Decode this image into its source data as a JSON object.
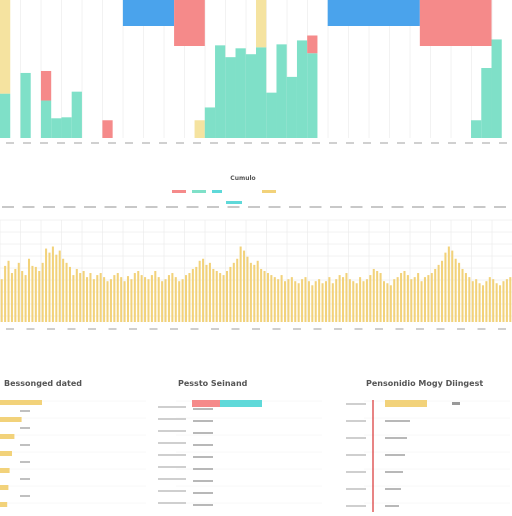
{
  "colors": {
    "red": "#f58a8a",
    "teal": "#7fe0c8",
    "cyan": "#5fd9d9",
    "yellow": "#f5e3a0",
    "blue": "#4aa3ec",
    "gold": "#f2d27a",
    "grid": "#e6e6e6"
  },
  "chart_data": [
    {
      "type": "bar",
      "note": "top stacked multi-color bar chart; labels illegible",
      "categories": [
        "c1",
        "c2",
        "c3",
        "c4",
        "c5",
        "c6",
        "c7",
        "c8",
        "c9",
        "c10",
        "c11",
        "c12",
        "c13",
        "c14",
        "c15",
        "c16",
        "c17",
        "c18",
        "c19",
        "c20",
        "c21",
        "c22",
        "c23",
        "c24",
        "c25",
        "c26",
        "c27",
        "c28",
        "c29",
        "c30",
        "c31",
        "c32",
        "c33",
        "c34",
        "c35",
        "c36",
        "c37",
        "c38",
        "c39",
        "c40",
        "c41",
        "c42",
        "c43",
        "c44",
        "c45",
        "c46",
        "c47",
        "c48",
        "c49",
        "c50"
      ],
      "series": [
        {
          "color": "teal",
          "values": [
            45,
            0,
            66,
            0,
            38,
            20,
            21,
            47,
            0,
            0,
            0,
            0,
            0,
            0,
            0,
            0,
            0,
            0,
            0,
            0,
            31,
            94,
            82,
            91,
            85,
            92,
            46,
            95,
            62,
            99,
            86,
            0,
            0,
            0,
            0,
            0,
            0,
            0,
            0,
            0,
            0,
            0,
            0,
            0,
            0,
            0,
            18,
            71,
            100,
            0
          ]
        },
        {
          "color": "red",
          "values": [
            0,
            0,
            0,
            0,
            30,
            0,
            0,
            0,
            0,
            0,
            18,
            0,
            0,
            0,
            0,
            0,
            0,
            0,
            0,
            0,
            0,
            0,
            0,
            0,
            0,
            0,
            0,
            0,
            0,
            0,
            18,
            0,
            0,
            0,
            0,
            0,
            0,
            0,
            0,
            0,
            0,
            0,
            0,
            0,
            0,
            0,
            0,
            0,
            0,
            0
          ]
        },
        {
          "color": "yellow",
          "values": [
            140,
            0,
            0,
            0,
            0,
            0,
            0,
            0,
            0,
            0,
            0,
            0,
            0,
            0,
            0,
            0,
            0,
            0,
            0,
            18,
            0,
            0,
            0,
            0,
            0,
            140,
            0,
            0,
            0,
            0,
            0,
            0,
            0,
            0,
            0,
            0,
            0,
            0,
            0,
            0,
            0,
            0,
            0,
            0,
            0,
            0,
            0,
            0,
            0,
            0
          ]
        }
      ],
      "top_blocks": [
        {
          "color": "blue",
          "from": 12,
          "to": 17
        },
        {
          "color": "red",
          "from": 17,
          "to": 20
        },
        {
          "color": "blue",
          "from": 32,
          "to": 41
        },
        {
          "color": "red",
          "from": 41,
          "to": 48
        }
      ],
      "ylim": [
        0,
        140
      ]
    },
    {
      "type": "bar",
      "note": "middle dense yellow bar chart",
      "title": "Cumulo",
      "ylim": [
        0,
        100
      ],
      "values": [
        42,
        55,
        60,
        48,
        52,
        58,
        50,
        46,
        62,
        55,
        54,
        50,
        58,
        72,
        68,
        74,
        66,
        70,
        62,
        58,
        54,
        46,
        52,
        48,
        50,
        44,
        48,
        42,
        46,
        48,
        44,
        40,
        42,
        46,
        48,
        44,
        40,
        45,
        42,
        48,
        50,
        46,
        44,
        42,
        46,
        50,
        44,
        40,
        42,
        46,
        48,
        44,
        40,
        42,
        46,
        48,
        52,
        54,
        60,
        62,
        56,
        58,
        52,
        50,
        48,
        46,
        50,
        54,
        58,
        62,
        74,
        70,
        64,
        58,
        56,
        60,
        52,
        50,
        48,
        46,
        44,
        42,
        46,
        40,
        42,
        44,
        40,
        38,
        42,
        44,
        40,
        36,
        40,
        42,
        38,
        40,
        44,
        38,
        42,
        46,
        44,
        48,
        42,
        40,
        38,
        44,
        40,
        42,
        46,
        52,
        50,
        48,
        40,
        38,
        36,
        42,
        44,
        48,
        50,
        46,
        42,
        44,
        48,
        40,
        44,
        46,
        48,
        52,
        56,
        60,
        68,
        74,
        70,
        62,
        58,
        52,
        48,
        44,
        40,
        42,
        38,
        36,
        40,
        44,
        42,
        38,
        36,
        40,
        42,
        44
      ]
    },
    {
      "type": "bar",
      "note": "bottom-left horizontal bars",
      "title": "Bessonged dated",
      "values": [
        35,
        18,
        12,
        10,
        8,
        7,
        6
      ]
    },
    {
      "type": "bar",
      "note": "bottom-middle stacked horizontal bar",
      "title": "Pessto Seinand",
      "values": [
        {
          "red": 28,
          "teal": 42
        }
      ]
    },
    {
      "type": "bar",
      "note": "bottom-right horizontal bars",
      "title": "Pensonidio Mogy Diingest",
      "values": [
        42,
        25,
        22,
        20,
        18,
        16,
        14
      ]
    }
  ]
}
